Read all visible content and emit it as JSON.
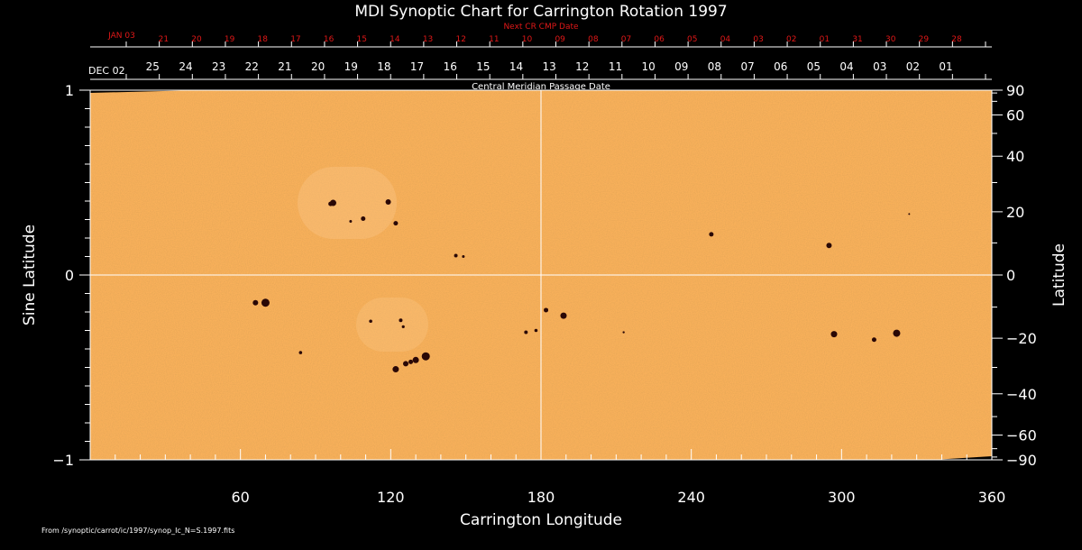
{
  "title": "MDI Synoptic Chart for Carrington Rotation 1997",
  "next_cr_label": "Next CR CMP Date",
  "cmp_label": "Central Meridian Passage Date",
  "start_date_label": "DEC 02",
  "next_start_label": "JAN 03",
  "cmp_day_labels": [
    "25",
    "24",
    "23",
    "22",
    "21",
    "20",
    "19",
    "18",
    "17",
    "16",
    "15",
    "14",
    "13",
    "12",
    "11",
    "10",
    "09",
    "08",
    "07",
    "06",
    "05",
    "04",
    "03",
    "02",
    "01"
  ],
  "next_cr_day_labels": [
    "21",
    "20",
    "19",
    "18",
    "17",
    "16",
    "15",
    "14",
    "13",
    "12",
    "11",
    "10",
    "09",
    "08",
    "07",
    "06",
    "05",
    "04",
    "03",
    "02",
    "01",
    "31",
    "30",
    "29",
    "28"
  ],
  "credit": "From /synoptic/carrot/ic/1997/synop_Ic_N=S.1997.fits",
  "colors": {
    "background": "#000000",
    "map": "#f8b05a",
    "spot": "#2a0806",
    "axis": "#ffffff",
    "date_accent": "#e01818"
  },
  "chart_data": {
    "type": "heatmap",
    "title": "MDI Synoptic Chart for Carrington Rotation 1997",
    "xlabel": "Carrington Longitude",
    "ylabel_left": "Sine Latitude",
    "ylabel_right": "Latitude",
    "xlim": [
      0,
      360
    ],
    "ylim": [
      -1,
      1
    ],
    "x_ticks": [
      60,
      120,
      180,
      240,
      300,
      360
    ],
    "y_ticks_left": [
      -1,
      0,
      1
    ],
    "y_ticks_right": [
      -90,
      -60,
      -40,
      -20,
      0,
      20,
      40,
      60,
      90
    ],
    "meridian_lines": [
      180
    ],
    "equator": 0,
    "sunspots": [
      {
        "lon": 70,
        "sinlat": -0.15,
        "r": 4.5
      },
      {
        "lon": 66,
        "sinlat": -0.15,
        "r": 3
      },
      {
        "lon": 97,
        "sinlat": 0.39,
        "r": 3.5
      },
      {
        "lon": 96,
        "sinlat": 0.385,
        "r": 2.5
      },
      {
        "lon": 119,
        "sinlat": 0.395,
        "r": 3
      },
      {
        "lon": 109,
        "sinlat": 0.305,
        "r": 2.5
      },
      {
        "lon": 122,
        "sinlat": 0.28,
        "r": 2.5
      },
      {
        "lon": 104,
        "sinlat": 0.29,
        "r": 1.5
      },
      {
        "lon": 146,
        "sinlat": 0.105,
        "r": 2
      },
      {
        "lon": 149,
        "sinlat": 0.1,
        "r": 1.5
      },
      {
        "lon": 112,
        "sinlat": -0.25,
        "r": 1.8
      },
      {
        "lon": 124,
        "sinlat": -0.245,
        "r": 2
      },
      {
        "lon": 125,
        "sinlat": -0.28,
        "r": 1.6
      },
      {
        "lon": 84,
        "sinlat": -0.42,
        "r": 1.8
      },
      {
        "lon": 134,
        "sinlat": -0.44,
        "r": 4.5
      },
      {
        "lon": 130,
        "sinlat": -0.46,
        "r": 3.5
      },
      {
        "lon": 126,
        "sinlat": -0.48,
        "r": 3
      },
      {
        "lon": 122,
        "sinlat": -0.51,
        "r": 3.5
      },
      {
        "lon": 128,
        "sinlat": -0.47,
        "r": 2.5
      },
      {
        "lon": 182,
        "sinlat": -0.19,
        "r": 2.5
      },
      {
        "lon": 189,
        "sinlat": -0.22,
        "r": 3.5
      },
      {
        "lon": 174,
        "sinlat": -0.31,
        "r": 2
      },
      {
        "lon": 178,
        "sinlat": -0.3,
        "r": 1.8
      },
      {
        "lon": 248,
        "sinlat": 0.22,
        "r": 2.5
      },
      {
        "lon": 295,
        "sinlat": 0.16,
        "r": 3
      },
      {
        "lon": 297,
        "sinlat": -0.32,
        "r": 3.5
      },
      {
        "lon": 313,
        "sinlat": -0.35,
        "r": 2.5
      },
      {
        "lon": 322,
        "sinlat": -0.315,
        "r": 4
      },
      {
        "lon": 327,
        "sinlat": 0.33,
        "r": 1
      },
      {
        "lon": 213,
        "sinlat": -0.31,
        "r": 1.2
      }
    ]
  }
}
